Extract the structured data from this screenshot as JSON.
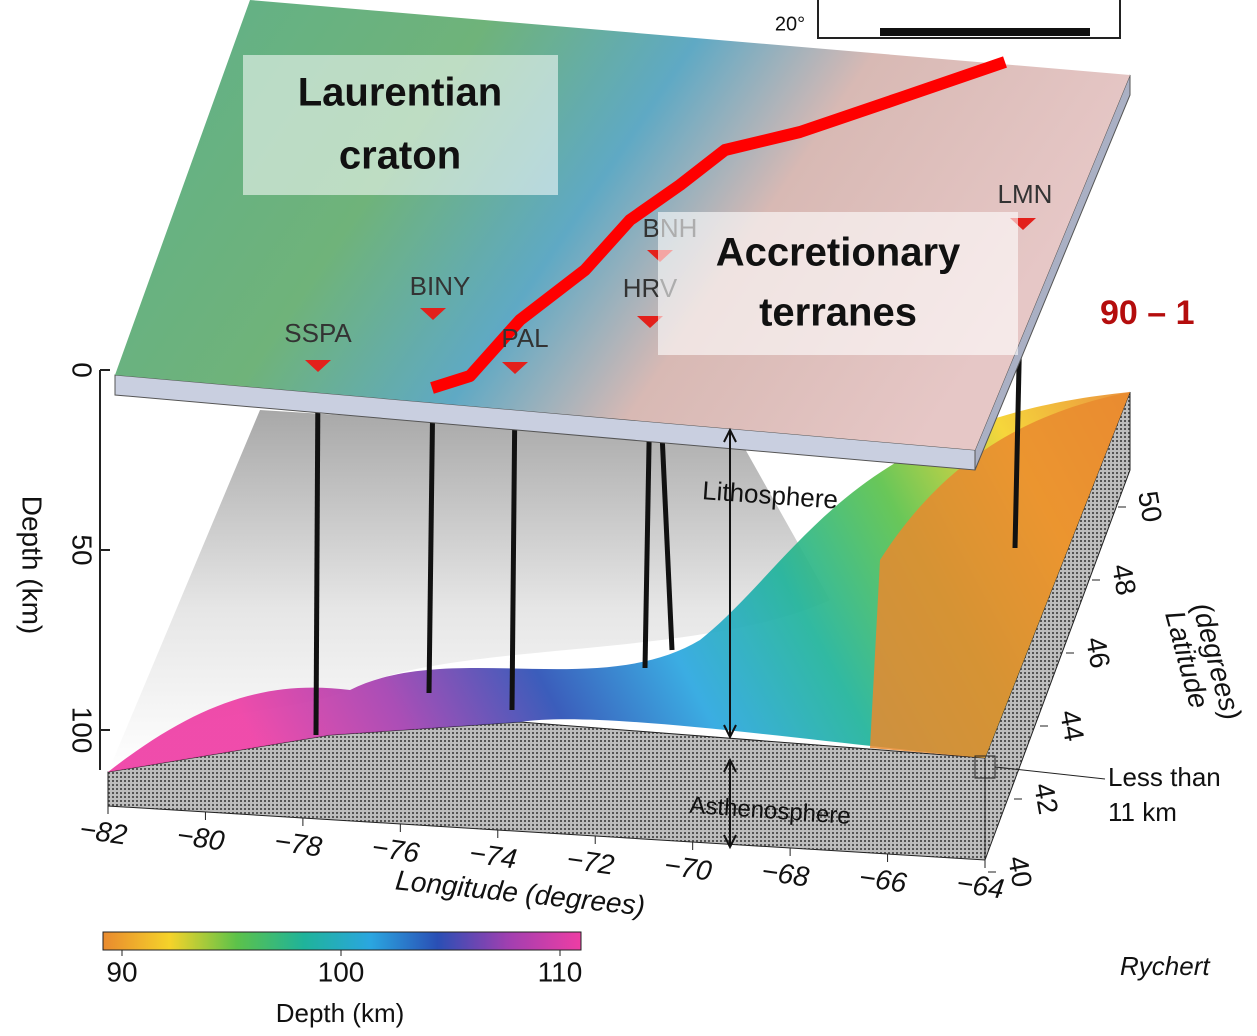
{
  "inset": {
    "label": "20°"
  },
  "regions": [
    {
      "lines": [
        "Laurentian",
        "craton"
      ]
    },
    {
      "lines": [
        "Accretionary",
        "terranes"
      ]
    }
  ],
  "stations": [
    "SSPA",
    "BINY",
    "PAL",
    "HRV",
    "BNH",
    "LMN"
  ],
  "side_text": "90 – 1",
  "layers": [
    "Lithosphere",
    "Asthenosphere"
  ],
  "depth_axis": {
    "title": "Depth (km)",
    "ticks": [
      0,
      50,
      100
    ]
  },
  "longitude_axis": {
    "title": "Longitude (degrees)",
    "ticks": [
      {
        "value": -82,
        "label": "−82"
      },
      {
        "value": -80,
        "label": "−80"
      },
      {
        "value": -78,
        "label": "−78"
      },
      {
        "value": -76,
        "label": "−76"
      },
      {
        "value": -74,
        "label": "−74"
      },
      {
        "value": -72,
        "label": "−72"
      },
      {
        "value": -70,
        "label": "−70"
      },
      {
        "value": -68,
        "label": "−68"
      },
      {
        "value": -66,
        "label": "−66"
      },
      {
        "value": -64,
        "label": "−64"
      }
    ]
  },
  "latitude_axis": {
    "title_lines": [
      "Latitude",
      "(degrees)"
    ],
    "ticks": [
      40,
      42,
      44,
      46,
      48,
      50
    ]
  },
  "annotation": {
    "lines": [
      "Less than",
      "11 km"
    ]
  },
  "colorbar": {
    "title": "Depth (km)",
    "ticks": [
      90,
      100,
      110
    ]
  },
  "credit": "Rychert"
}
